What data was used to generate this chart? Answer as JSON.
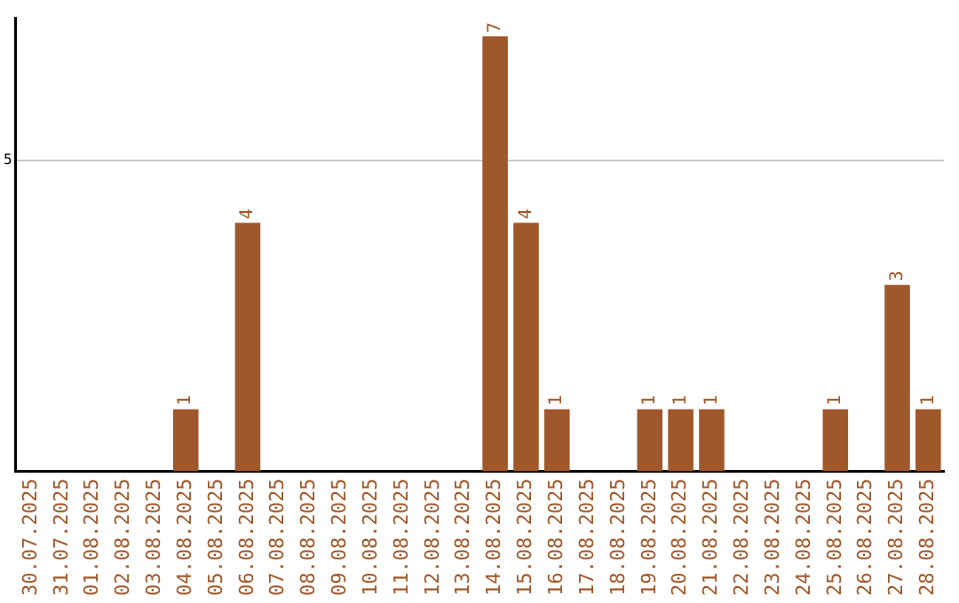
{
  "chart_data": {
    "type": "bar",
    "categories": [
      "30.07.2025",
      "31.07.2025",
      "01.08.2025",
      "02.08.2025",
      "03.08.2025",
      "04.08.2025",
      "05.08.2025",
      "06.08.2025",
      "07.08.2025",
      "08.08.2025",
      "09.08.2025",
      "10.08.2025",
      "11.08.2025",
      "12.08.2025",
      "13.08.2025",
      "14.08.2025",
      "15.08.2025",
      "16.08.2025",
      "17.08.2025",
      "18.08.2025",
      "19.08.2025",
      "20.08.2025",
      "21.08.2025",
      "22.08.2025",
      "23.08.2025",
      "24.08.2025",
      "25.08.2025",
      "26.08.2025",
      "27.08.2025",
      "28.08.2025"
    ],
    "values": [
      0,
      0,
      0,
      0,
      0,
      1,
      0,
      4,
      0,
      0,
      0,
      0,
      0,
      0,
      0,
      7,
      4,
      1,
      0,
      0,
      1,
      1,
      1,
      0,
      0,
      0,
      1,
      0,
      3,
      1
    ],
    "value_labels": [
      null,
      null,
      null,
      null,
      null,
      "1",
      null,
      "4",
      null,
      null,
      null,
      null,
      null,
      null,
      null,
      "7",
      "4",
      "1",
      null,
      null,
      "1",
      "1",
      "1",
      null,
      null,
      null,
      "1",
      null,
      "3",
      "1"
    ],
    "color": "#a0572a",
    "ylim": [
      0,
      7.3
    ],
    "yticks": [
      5
    ],
    "grid": "y",
    "legend": false
  }
}
